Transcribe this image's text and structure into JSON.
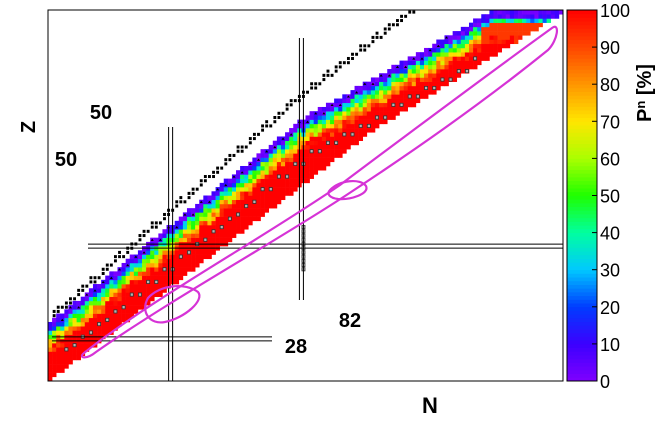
{
  "chart_data": {
    "type": "heatmap",
    "xlabel": "N",
    "ylabel": "Z",
    "xlim": [
      20,
      146
    ],
    "ylim": [
      18,
      106
    ],
    "colorbar": {
      "label_main": "P",
      "label_sub": "n",
      "label_unit": " [%]",
      "range": [
        0,
        100
      ],
      "ticks": [
        "0",
        "10",
        "20",
        "30",
        "40",
        "50",
        "60",
        "70",
        "80",
        "90",
        "100"
      ]
    },
    "magic_lines": [
      {
        "label": "50",
        "axis": "N",
        "value": 50
      },
      {
        "label": "82",
        "axis": "N",
        "value": 82
      },
      {
        "label": "50",
        "axis": "Z",
        "value": 50
      },
      {
        "label": "28",
        "axis": "Z",
        "value": 28
      }
    ],
    "legend_markers": {
      "stable": "black square",
      "measured": "black triangle",
      "predicted": "gray square"
    },
    "colors": {
      "high": "#ff0000",
      "low": "#7f00ff",
      "stable": "#000000",
      "boundary": "#d633d6",
      "measured_marker": "#000000",
      "prediction_marker": "#b4b4b4"
    }
  }
}
